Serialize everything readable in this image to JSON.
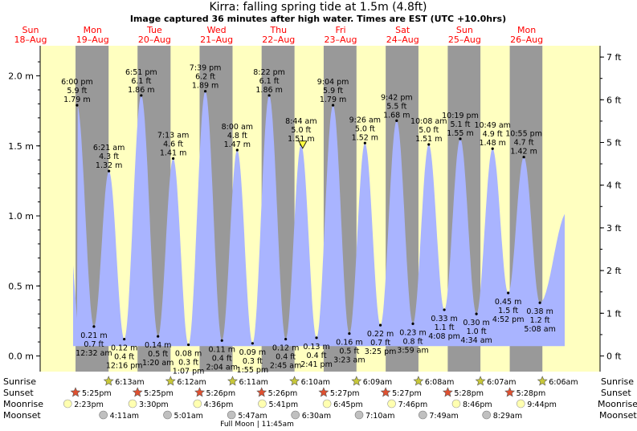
{
  "chart_data": {
    "type": "area",
    "title": "Kirra: falling  spring tide at 1.5m (4.8ft)",
    "subtitle": "Image captured 36 minutes after high water. Times are EST (UTC +10.0hrs)",
    "y_left": {
      "unit": "m",
      "ticks": [
        "0.0 m",
        "0.5 m",
        "1.0 m",
        "1.5 m",
        "2.0 m"
      ],
      "values": [
        0,
        0.5,
        1.0,
        1.5,
        2.0
      ],
      "range": [
        -0.13,
        2.22
      ]
    },
    "y_right": {
      "unit": "ft",
      "ticks": [
        "0 ft",
        "1 ft",
        "2 ft",
        "3 ft",
        "4 ft",
        "5 ft",
        "6 ft",
        "7 ft"
      ]
    },
    "days": [
      {
        "dow": "Sun",
        "date": "18–Aug"
      },
      {
        "dow": "Mon",
        "date": "19–Aug"
      },
      {
        "dow": "Tue",
        "date": "20–Aug"
      },
      {
        "dow": "Wed",
        "date": "21–Aug"
      },
      {
        "dow": "Thu",
        "date": "22–Aug"
      },
      {
        "dow": "Fri",
        "date": "23–Aug"
      },
      {
        "dow": "Sat",
        "date": "24–Aug"
      },
      {
        "dow": "Sun",
        "date": "25–Aug"
      },
      {
        "dow": "Mon",
        "date": "26–Aug"
      }
    ],
    "tides": [
      {
        "type": "high",
        "day": 0,
        "time": "6:00 pm",
        "ft": "5.9 ft",
        "m": 1.79,
        "label": "1.79 m"
      },
      {
        "type": "low",
        "day": 1,
        "time": "12:32 am",
        "ft": "0.7 ft",
        "m": 0.21,
        "label": "0.21 m"
      },
      {
        "type": "high",
        "day": 1,
        "time": "6:21 am",
        "ft": "4.3 ft",
        "m": 1.32,
        "label": "1.32 m"
      },
      {
        "type": "low",
        "day": 1,
        "time": "12:16 pm",
        "ft": "0.4 ft",
        "m": 0.12,
        "label": "0.12 m"
      },
      {
        "type": "high",
        "day": 1,
        "time": "6:51 pm",
        "ft": "6.1 ft",
        "m": 1.86,
        "label": "1.86 m"
      },
      {
        "type": "low",
        "day": 2,
        "time": "1:20 am",
        "ft": "0.5 ft",
        "m": 0.14,
        "label": "0.14 m"
      },
      {
        "type": "high",
        "day": 2,
        "time": "7:13 am",
        "ft": "4.6 ft",
        "m": 1.41,
        "label": "1.41 m"
      },
      {
        "type": "low",
        "day": 2,
        "time": "1:07 pm",
        "ft": "0.3 ft",
        "m": 0.08,
        "label": "0.08 m"
      },
      {
        "type": "high",
        "day": 2,
        "time": "7:39 pm",
        "ft": "6.2 ft",
        "m": 1.89,
        "label": "1.89 m"
      },
      {
        "type": "low",
        "day": 3,
        "time": "2:04 am",
        "ft": "0.4 ft",
        "m": 0.11,
        "label": "0.11 m"
      },
      {
        "type": "high",
        "day": 3,
        "time": "8:00 am",
        "ft": "4.8 ft",
        "m": 1.47,
        "label": "1.47 m"
      },
      {
        "type": "low",
        "day": 3,
        "time": "1:55 pm",
        "ft": "0.3 ft",
        "m": 0.09,
        "label": "0.09 m"
      },
      {
        "type": "high",
        "day": 3,
        "time": "8:22 pm",
        "ft": "6.1 ft",
        "m": 1.86,
        "label": "1.86 m"
      },
      {
        "type": "low",
        "day": 4,
        "time": "2:45 am",
        "ft": "0.4 ft",
        "m": 0.12,
        "label": "0.12 m"
      },
      {
        "type": "high",
        "day": 4,
        "time": "8:44 am",
        "ft": "5.0 ft",
        "m": 1.51,
        "label": "1.51 m"
      },
      {
        "type": "low",
        "day": 4,
        "time": "2:41 pm",
        "ft": "0.4 ft",
        "m": 0.13,
        "label": "0.13 m"
      },
      {
        "type": "high",
        "day": 4,
        "time": "9:04 pm",
        "ft": "5.9 ft",
        "m": 1.79,
        "label": "1.79 m"
      },
      {
        "type": "low",
        "day": 5,
        "time": "3:23 am",
        "ft": "0.5 ft",
        "m": 0.16,
        "label": "0.16 m"
      },
      {
        "type": "high",
        "day": 5,
        "time": "9:26 am",
        "ft": "5.0 ft",
        "m": 1.52,
        "label": "1.52 m"
      },
      {
        "type": "low",
        "day": 5,
        "time": "3:25 pm",
        "ft": "0.7 ft",
        "m": 0.22,
        "label": "0.22 m"
      },
      {
        "type": "high",
        "day": 5,
        "time": "9:42 pm",
        "ft": "5.5 ft",
        "m": 1.68,
        "label": "1.68 m"
      },
      {
        "type": "low",
        "day": 6,
        "time": "3:59 am",
        "ft": "0.8 ft",
        "m": 0.23,
        "label": "0.23 m"
      },
      {
        "type": "high",
        "day": 6,
        "time": "10:08 am",
        "ft": "5.0 ft",
        "m": 1.51,
        "label": "1.51 m"
      },
      {
        "type": "low",
        "day": 6,
        "time": "4:08 pm",
        "ft": "1.1 ft",
        "m": 0.33,
        "label": "0.33 m"
      },
      {
        "type": "high",
        "day": 6,
        "time": "10:19 pm",
        "ft": "5.1 ft",
        "m": 1.55,
        "label": "1.55 m"
      },
      {
        "type": "low",
        "day": 7,
        "time": "4:34 am",
        "ft": "1.0 ft",
        "m": 0.3,
        "label": "0.30 m"
      },
      {
        "type": "high",
        "day": 7,
        "time": "10:49 am",
        "ft": "4.9 ft",
        "m": 1.48,
        "label": "1.48 m"
      },
      {
        "type": "low",
        "day": 7,
        "time": "4:52 pm",
        "ft": "1.5 ft",
        "m": 0.45,
        "label": "0.45 m"
      },
      {
        "type": "high",
        "day": 7,
        "time": "10:55 pm",
        "ft": "4.7 ft",
        "m": 1.42,
        "label": "1.42 m"
      },
      {
        "type": "low",
        "day": 8,
        "time": "5:08 am",
        "ft": "1.2 ft",
        "m": 0.38,
        "label": "0.38 m"
      }
    ],
    "sun": {
      "sunrise_label": "Sunrise",
      "sunset_label": "Sunset",
      "sunrises": [
        {
          "day": 1,
          "time": "6:13am"
        },
        {
          "day": 2,
          "time": "6:12am"
        },
        {
          "day": 3,
          "time": "6:11am"
        },
        {
          "day": 4,
          "time": "6:10am"
        },
        {
          "day": 5,
          "time": "6:09am"
        },
        {
          "day": 6,
          "time": "6:08am"
        },
        {
          "day": 7,
          "time": "6:07am"
        },
        {
          "day": 8,
          "time": "6:06am"
        }
      ],
      "sunsets": [
        {
          "day": 0,
          "time": "5:25pm"
        },
        {
          "day": 1,
          "time": "5:25pm"
        },
        {
          "day": 2,
          "time": "5:26pm"
        },
        {
          "day": 3,
          "time": "5:26pm"
        },
        {
          "day": 4,
          "time": "5:27pm"
        },
        {
          "day": 5,
          "time": "5:27pm"
        },
        {
          "day": 6,
          "time": "5:28pm"
        },
        {
          "day": 7,
          "time": "5:28pm"
        }
      ]
    },
    "moon": {
      "moonrise_label": "Moonrise",
      "moonset_label": "Moonset",
      "moonrises": [
        {
          "day": 0,
          "time": "2:23pm"
        },
        {
          "day": 1,
          "time": "3:30pm"
        },
        {
          "day": 2,
          "time": "4:36pm"
        },
        {
          "day": 3,
          "time": "5:41pm"
        },
        {
          "day": 4,
          "time": "6:45pm"
        },
        {
          "day": 5,
          "time": "7:46pm"
        },
        {
          "day": 6,
          "time": "8:46pm"
        },
        {
          "day": 7,
          "time": "9:44pm"
        }
      ],
      "moonsets": [
        {
          "day": 1,
          "time": "4:11am"
        },
        {
          "day": 2,
          "time": "5:01am"
        },
        {
          "day": 3,
          "time": "5:47am"
        },
        {
          "day": 4,
          "time": "6:30am"
        },
        {
          "day": 5,
          "time": "7:10am"
        },
        {
          "day": 6,
          "time": "7:49am"
        },
        {
          "day": 7,
          "time": "8:29am"
        }
      ],
      "phase_note": "Full Moon | 11:45am"
    },
    "current_marker": {
      "day": 4,
      "time": "9:20 am",
      "m": 1.5
    },
    "colors": {
      "day": "#ffffc0",
      "night": "#999999",
      "water": "#a9b4ff",
      "day_label": "#ff0000",
      "sunrise_star": "#c8c83a",
      "sunset_star": "#e05030",
      "moonrise": "#ffffb0",
      "moonset": "#c0c0c0"
    }
  }
}
